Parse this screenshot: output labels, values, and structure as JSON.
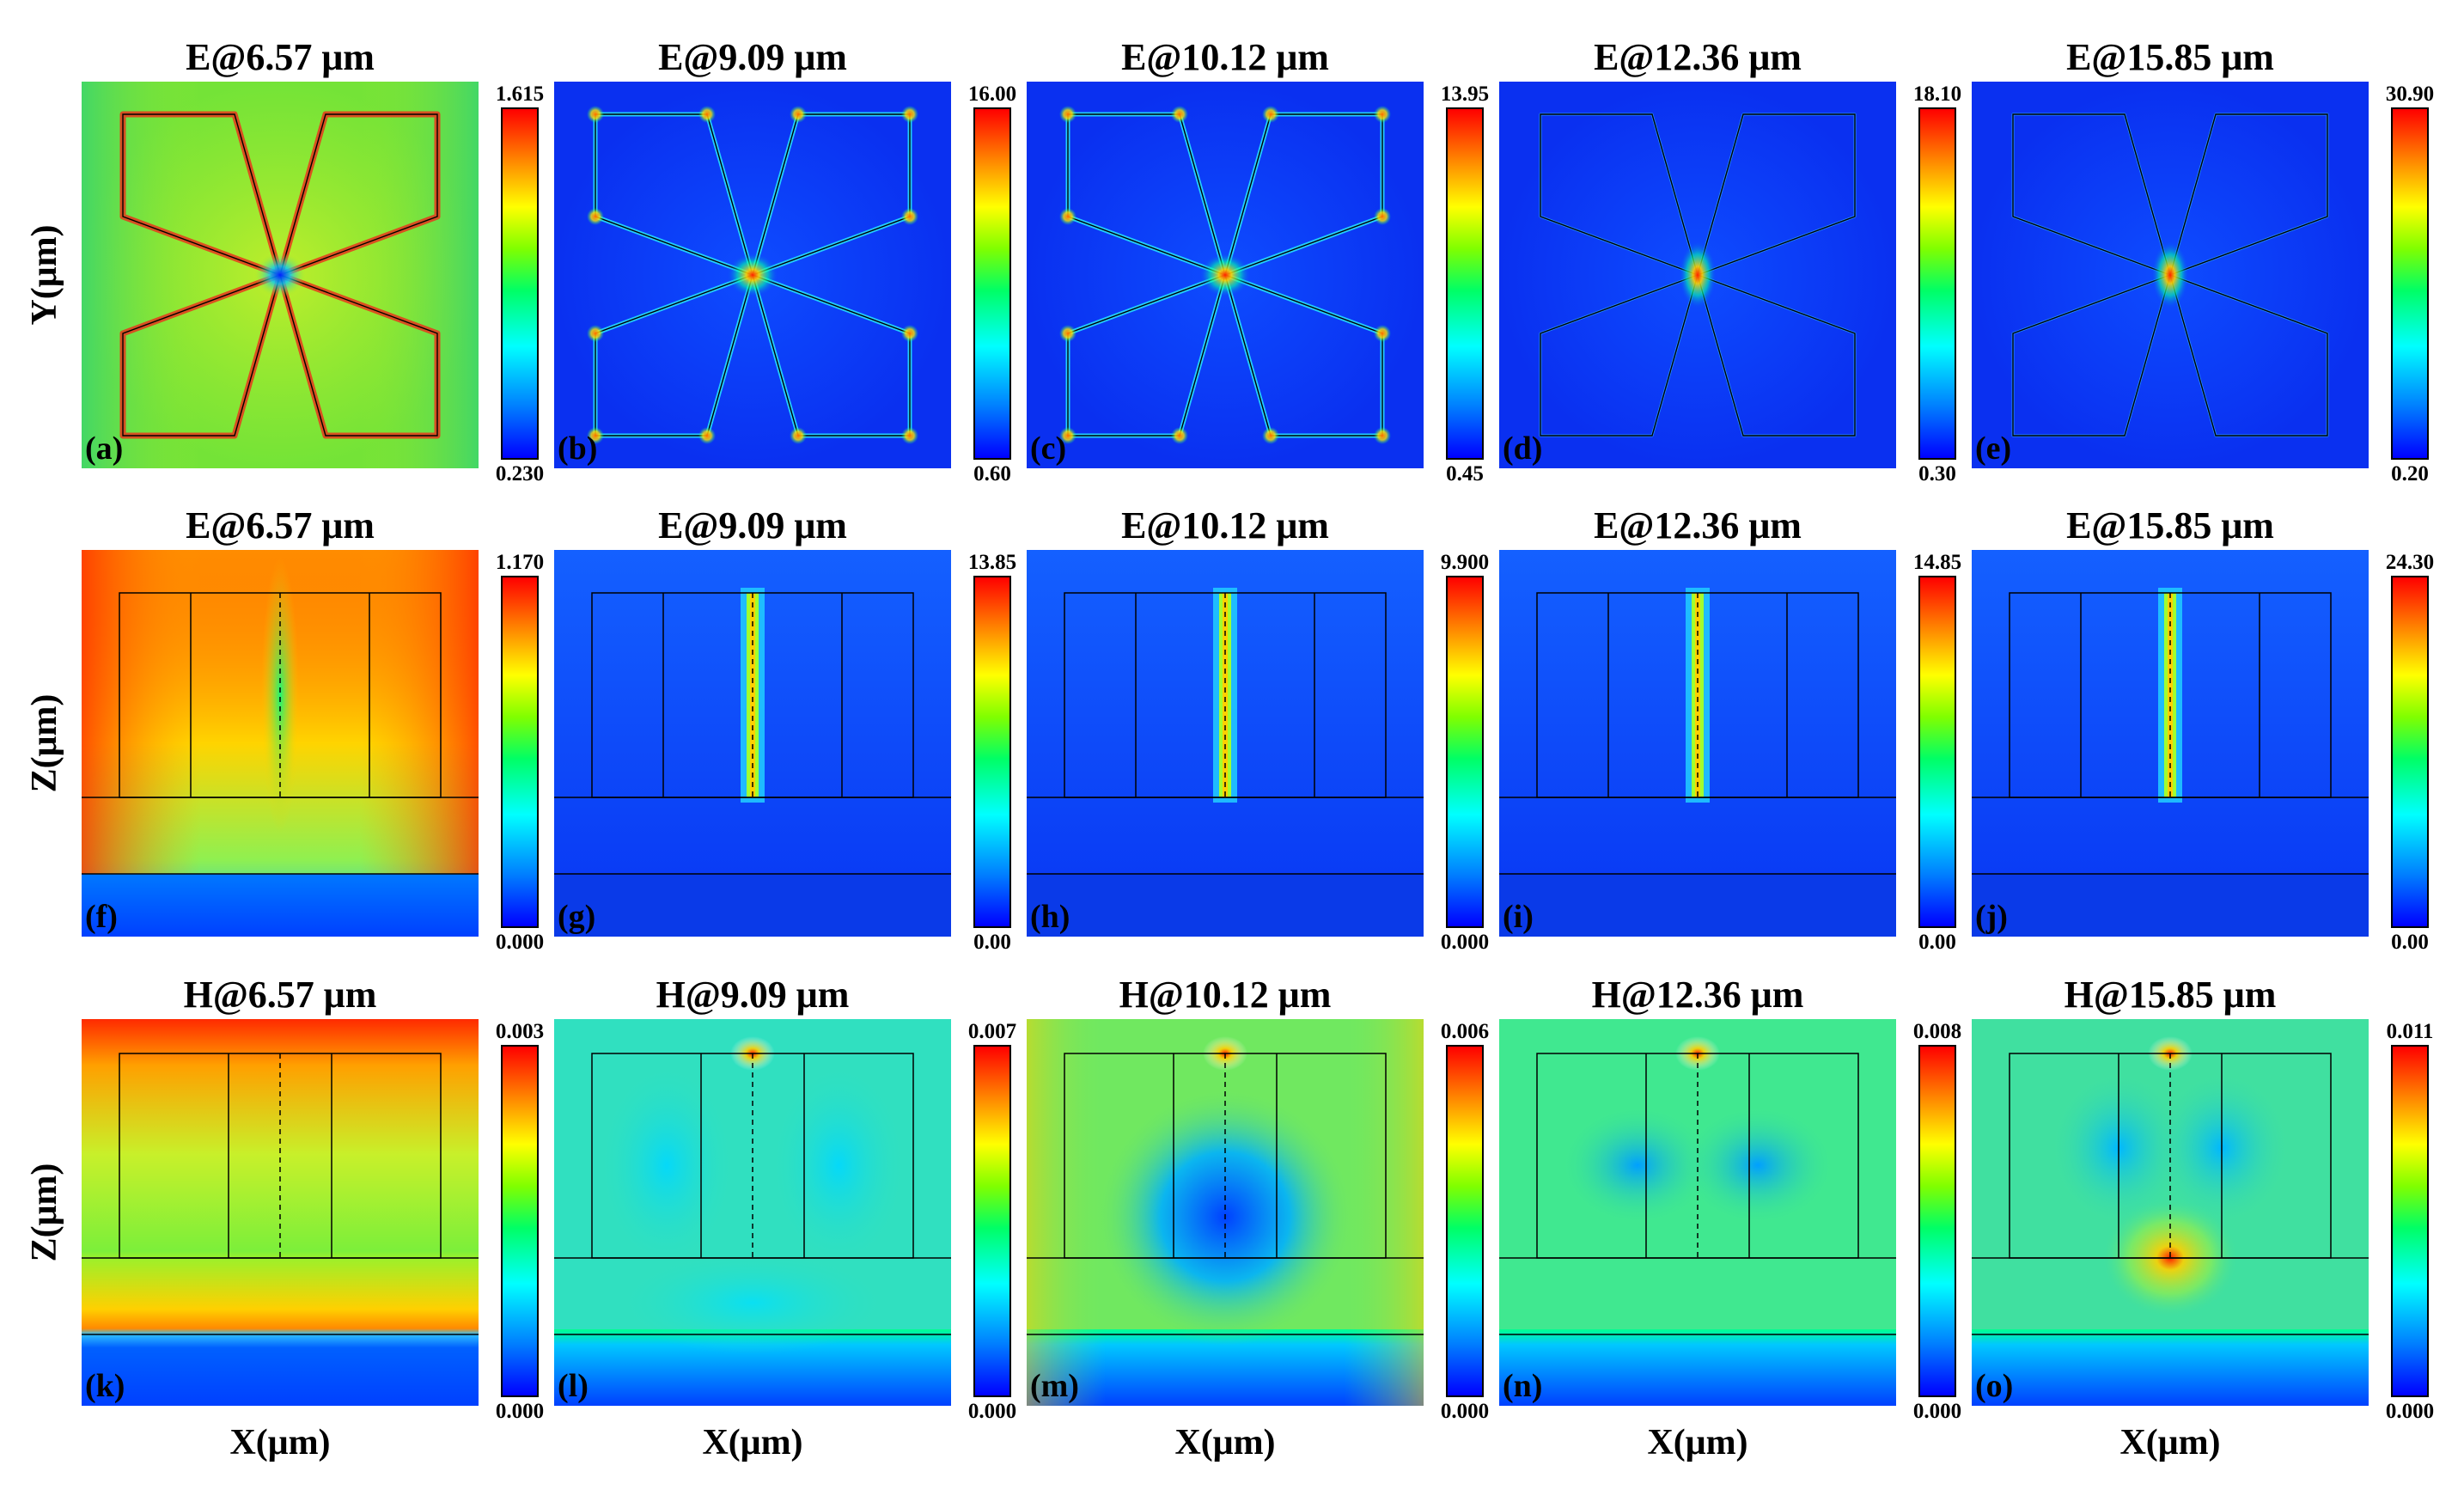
{
  "figure": {
    "rows": [
      {
        "view": "xy",
        "y_axis_label": "Y(μm)",
        "panels": [
          {
            "title": "E@6.57 μm",
            "label": "(a)",
            "cb_max": "1.615",
            "cb_min": "0.230",
            "pattern": "xy-low"
          },
          {
            "title": "E@9.09 μm",
            "label": "(b)",
            "cb_max": "16.00",
            "cb_min": "0.60",
            "pattern": "xy-high"
          },
          {
            "title": "E@10.12 μm",
            "label": "(c)",
            "cb_max": "13.95",
            "cb_min": "0.45",
            "pattern": "xy-high"
          },
          {
            "title": "E@12.36 μm",
            "label": "(d)",
            "cb_max": "18.10",
            "cb_min": "0.30",
            "pattern": "xy-center"
          },
          {
            "title": "E@15.85 μm",
            "label": "(e)",
            "cb_max": "30.90",
            "cb_min": "0.20",
            "pattern": "xy-center"
          }
        ]
      },
      {
        "view": "xz-e",
        "y_axis_label": "Z(μm)",
        "panels": [
          {
            "title": "E@6.57 μm",
            "label": "(f)",
            "cb_max": "1.170",
            "cb_min": "0.000",
            "pattern": "xz-e-low"
          },
          {
            "title": "E@9.09 μm",
            "label": "(g)",
            "cb_max": "13.85",
            "cb_min": "0.00",
            "pattern": "xz-e-gap"
          },
          {
            "title": "E@10.12 μm",
            "label": "(h)",
            "cb_max": "9.900",
            "cb_min": "0.000",
            "pattern": "xz-e-gap"
          },
          {
            "title": "E@12.36 μm",
            "label": "(i)",
            "cb_max": "14.85",
            "cb_min": "0.00",
            "pattern": "xz-e-gap"
          },
          {
            "title": "E@15.85 μm",
            "label": "(j)",
            "cb_max": "24.30",
            "cb_min": "0.00",
            "pattern": "xz-e-gap"
          }
        ]
      },
      {
        "view": "xz-h",
        "y_axis_label": "Z(μm)",
        "x_axis_label": "X(μm)",
        "panels": [
          {
            "title": "H@6.57 μm",
            "label": "(k)",
            "cb_max": "0.003",
            "cb_min": "0.000",
            "pattern": "h-low"
          },
          {
            "title": "H@9.09 μm",
            "label": "(l)",
            "cb_max": "0.007",
            "cb_min": "0.000",
            "pattern": "h-a"
          },
          {
            "title": "H@10.12 μm",
            "label": "(m)",
            "cb_max": "0.006",
            "cb_min": "0.000",
            "pattern": "h-b"
          },
          {
            "title": "H@12.36 μm",
            "label": "(n)",
            "cb_max": "0.008",
            "cb_min": "0.000",
            "pattern": "h-c"
          },
          {
            "title": "H@15.85 μm",
            "label": "(o)",
            "cb_max": "0.011",
            "cb_min": "0.000",
            "pattern": "h-d"
          }
        ]
      }
    ]
  }
}
